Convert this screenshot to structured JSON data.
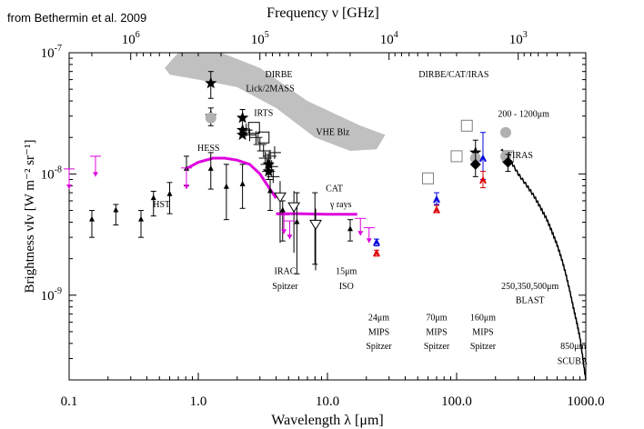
{
  "credit": "from Bethermin et al. 2009",
  "chart_data": {
    "type": "scatter",
    "xscale": "log",
    "yscale": "log",
    "xlim": [
      0.1,
      1000
    ],
    "ylim": [
      2e-10,
      1e-07
    ],
    "xlabel": "Wavelength λ [μm]",
    "ylabel": "Brightness νIν [W m⁻² sr⁻¹]",
    "top_axis_label": "Frequency ν [GHz]",
    "x_ticks": [
      {
        "value": 0.1,
        "label": "0.1"
      },
      {
        "value": 1,
        "label": "1.0"
      },
      {
        "value": 10,
        "label": "10.0"
      },
      {
        "value": 100,
        "label": "100.0"
      },
      {
        "value": 1000,
        "label": "1000.0"
      }
    ],
    "y_ticks": [
      {
        "value": 1e-09,
        "label": "10",
        "exp": "-9"
      },
      {
        "value": 1e-08,
        "label": "10",
        "exp": "-8"
      },
      {
        "value": 1e-07,
        "label": "10",
        "exp": "-7"
      }
    ],
    "top_ticks": [
      {
        "value": 1000000,
        "label": "10",
        "exp": "6"
      },
      {
        "value": 100000,
        "label": "10",
        "exp": "5"
      },
      {
        "value": 10000,
        "label": "10",
        "exp": "4"
      },
      {
        "value": 1000,
        "label": "10",
        "exp": "3"
      }
    ],
    "annotations": [
      {
        "text": "DIRBE",
        "x": 4.2,
        "y": 6.3e-08
      },
      {
        "text": "Lick/2MASS",
        "x": 3.6,
        "y": 4.8e-08
      },
      {
        "text": "IRTS",
        "x": 3.2,
        "y": 3e-08
      },
      {
        "text": "VHE Blz",
        "x": 11,
        "y": 2.1e-08
      },
      {
        "text": "HESS",
        "x": 1.2,
        "y": 1.55e-08
      },
      {
        "text": "DIRBE/CAT/IRAS",
        "x": 95,
        "y": 6.3e-08
      },
      {
        "text": "200 - 1200μm",
        "x": 330,
        "y": 2.95e-08
      },
      {
        "text": "FIRAS",
        "x": 310,
        "y": 1.35e-08
      },
      {
        "text": "HST",
        "x": 0.52,
        "y": 5.3e-09
      },
      {
        "text": "CAT",
        "x": 11.3,
        "y": 7.2e-09
      },
      {
        "text": "γ rays",
        "x": 12.7,
        "y": 5.3e-09
      },
      {
        "text": "IRAC",
        "x": 4.7,
        "y": 1.5e-09
      },
      {
        "text": "Spitzer",
        "x": 4.7,
        "y": 1.12e-09
      },
      {
        "text": "15μm",
        "x": 14,
        "y": 1.5e-09
      },
      {
        "text": "ISO",
        "x": 14,
        "y": 1.12e-09
      },
      {
        "text": "250,350,500μm",
        "x": 370,
        "y": 1.12e-09
      },
      {
        "text": "BLAST",
        "x": 370,
        "y": 8.6e-10
      },
      {
        "text": "24μm",
        "x": 25,
        "y": 6.2e-10
      },
      {
        "text": "MIPS",
        "x": 25,
        "y": 4.7e-10
      },
      {
        "text": "Spitzer",
        "x": 25,
        "y": 3.6e-10
      },
      {
        "text": "70μm",
        "x": 70,
        "y": 6.2e-10
      },
      {
        "text": "MIPS",
        "x": 70,
        "y": 4.7e-10
      },
      {
        "text": "Spitzer",
        "x": 70,
        "y": 3.6e-10
      },
      {
        "text": "160μm",
        "x": 160,
        "y": 6.2e-10
      },
      {
        "text": "MIPS",
        "x": 160,
        "y": 4.7e-10
      },
      {
        "text": "Spitzer",
        "x": 160,
        "y": 3.6e-10
      },
      {
        "text": "850μm",
        "x": 800,
        "y": 3.6e-10
      },
      {
        "text": "SCUBA",
        "x": 790,
        "y": 2.7e-10
      }
    ],
    "series": [
      {
        "color": "#000000",
        "marker": "triangle-up",
        "points": [
          {
            "x": 0.15,
            "y": 4.2e-09,
            "lo": 3e-09,
            "hi": 5e-09
          },
          {
            "x": 0.23,
            "y": 5e-09,
            "lo": 3.8e-09,
            "hi": 5.6e-09
          },
          {
            "x": 0.36,
            "y": 4.2e-09,
            "lo": 3e-09,
            "hi": 5e-09
          },
          {
            "x": 0.45,
            "y": 6.3e-09,
            "lo": 4.5e-09,
            "hi": 7.2e-09
          },
          {
            "x": 0.6,
            "y": 6.8e-09,
            "lo": 4.7e-09,
            "hi": 8.5e-09
          },
          {
            "x": 0.81,
            "y": 1.1e-08,
            "lo": 8e-09,
            "hi": 1.4e-08
          },
          {
            "x": 1.25,
            "y": 1.1e-08,
            "lo": 7.5e-09,
            "hi": 1.5e-08
          },
          {
            "x": 1.65,
            "y": 7.8e-09,
            "lo": 4.2e-09,
            "hi": 1.2e-08
          },
          {
            "x": 2.2,
            "y": 8.2e-09,
            "lo": 5.2e-09,
            "hi": 1.2e-08
          },
          {
            "x": 3.6,
            "y": 7.2e-09,
            "lo": 5e-09,
            "hi": 9e-09
          },
          {
            "x": 4.5,
            "y": 5e-09,
            "lo": 2.8e-09,
            "hi": 6e-09
          },
          {
            "x": 5.8,
            "y": 4e-09,
            "lo": 1.5e-09,
            "hi": 7e-09
          },
          {
            "x": 8.0,
            "y": 4e-09,
            "lo": 1.8e-09,
            "hi": 7e-09
          },
          {
            "x": 15,
            "y": 3.5e-09,
            "lo": 2.8e-09,
            "hi": 4.2e-09
          }
        ]
      },
      {
        "color": "#000000",
        "marker": "plus",
        "points": [
          {
            "x": 2.35,
            "y": 2.3e-08
          },
          {
            "x": 2.5,
            "y": 2.1e-08
          },
          {
            "x": 2.8,
            "y": 2e-08
          },
          {
            "x": 3.0,
            "y": 1.75e-08
          },
          {
            "x": 3.2,
            "y": 1.55e-08
          },
          {
            "x": 3.3,
            "y": 1.35e-08
          },
          {
            "x": 3.4,
            "y": 1.2e-08
          },
          {
            "x": 3.5,
            "y": 1.05e-08
          },
          {
            "x": 3.6,
            "y": 1.4e-08
          },
          {
            "x": 3.7,
            "y": 1.15e-08
          },
          {
            "x": 3.8,
            "y": 9.5e-09
          },
          {
            "x": 3.9,
            "y": 1.5e-08
          }
        ]
      },
      {
        "color": "#000000",
        "marker": "star",
        "points": [
          {
            "x": 1.25,
            "y": 5.6e-08,
            "lo": 4.2e-08,
            "hi": 7e-08
          },
          {
            "x": 1.25,
            "y": 3e-08,
            "lo": 2.5e-08,
            "hi": 3.5e-08
          },
          {
            "x": 2.2,
            "y": 2.9e-08,
            "lo": 2.2e-08,
            "hi": 3.4e-08
          },
          {
            "x": 2.2,
            "y": 2.3e-08
          },
          {
            "x": 2.2,
            "y": 2.1e-08
          },
          {
            "x": 3.5,
            "y": 1.2e-08,
            "lo": 9e-09,
            "hi": 1.45e-08
          },
          {
            "x": 3.5,
            "y": 1.05e-08
          },
          {
            "x": 140,
            "y": 1.5e-08,
            "lo": 1.3e-08,
            "hi": 1.9e-08
          }
        ]
      },
      {
        "color": "#000000",
        "marker": "triangle-down-open",
        "points": [
          {
            "x": 4.3,
            "y": 6.4e-09
          },
          {
            "x": 5.5,
            "y": 5.3e-09
          },
          {
            "x": 8.1,
            "y": 3.8e-09
          }
        ]
      },
      {
        "color": "#000000",
        "marker": "square-open",
        "points": [
          {
            "x": 2.7,
            "y": 2.4e-08
          },
          {
            "x": 3.2,
            "y": 2e-08
          },
          {
            "x": 60,
            "y": 9.2e-09
          },
          {
            "x": 100,
            "y": 1.4e-08
          },
          {
            "x": 120,
            "y": 2.5e-08
          },
          {
            "x": 250,
            "y": 1.4e-08
          }
        ]
      },
      {
        "color": "#b0b0b0",
        "marker": "circle",
        "points": [
          {
            "x": 1.25,
            "y": 2.9e-08
          },
          {
            "x": 140,
            "y": 1.35e-08
          },
          {
            "x": 240,
            "y": 1.4e-08
          },
          {
            "x": 240,
            "y": 2.2e-08
          }
        ]
      },
      {
        "color": "#000000",
        "marker": "diamond",
        "points": [
          {
            "x": 140,
            "y": 1.2e-08,
            "lo": 9.5e-09,
            "hi": 1.5e-08
          },
          {
            "x": 250,
            "y": 1.25e-08,
            "lo": 1.05e-08,
            "hi": 1.45e-08
          }
        ]
      },
      {
        "color": "#0000dd",
        "marker": "caret",
        "points": [
          {
            "x": 24,
            "y": 2.7e-09,
            "lo": 2.55e-09,
            "hi": 2.9e-09
          },
          {
            "x": 70,
            "y": 6.1e-09,
            "lo": 5.6e-09,
            "hi": 7e-09
          },
          {
            "x": 160,
            "y": 1.33e-08,
            "lo": 9e-09,
            "hi": 2.2e-08
          }
        ]
      },
      {
        "color": "#dd0000",
        "marker": "caret",
        "points": [
          {
            "x": 24,
            "y": 2.2e-09,
            "lo": 2.1e-09,
            "hi": 2.35e-09
          },
          {
            "x": 70,
            "y": 5e-09,
            "lo": 4.8e-09,
            "hi": 5.5e-09
          },
          {
            "x": 160,
            "y": 8.8e-09,
            "lo": 7.7e-09,
            "hi": 1.05e-08
          }
        ]
      },
      {
        "color": "#dd00dd",
        "marker": "upper-limit",
        "points": [
          {
            "x": 0.1,
            "y": 1.1e-08,
            "to": 7.5e-09
          },
          {
            "x": 0.16,
            "y": 1.4e-08,
            "to": 9.5e-09
          },
          {
            "x": 0.81,
            "y": 1.12e-08,
            "to": 7.5e-09
          },
          {
            "x": 4.6,
            "y": 4.6e-09,
            "to": 3.2e-09
          },
          {
            "x": 5.1,
            "y": 4.1e-09,
            "to": 2.9e-09
          },
          {
            "x": 18,
            "y": 4.3e-09,
            "to": 3.1e-09
          },
          {
            "x": 21,
            "y": 3.6e-09,
            "to": 2.7e-09
          }
        ]
      }
    ],
    "curves": [
      {
        "name": "HESS",
        "color": "#dd00dd",
        "points": [
          [
            0.8,
            1.1e-08
          ],
          [
            1.0,
            1.25e-08
          ],
          [
            1.3,
            1.35e-08
          ],
          [
            1.6,
            1.35e-08
          ],
          [
            2.0,
            1.3e-08
          ],
          [
            2.5,
            1.2e-08
          ],
          [
            3.0,
            1e-08
          ],
          [
            3.5,
            7.8e-09
          ],
          [
            4.0,
            6.3e-09
          ]
        ]
      },
      {
        "name": "CAT",
        "color": "#dd00dd",
        "points": [
          [
            4.0,
            4.7e-09
          ],
          [
            6.0,
            4.7e-09
          ],
          [
            10.0,
            4.65e-09
          ],
          [
            15.0,
            4.65e-09
          ],
          [
            17.0,
            4.65e-09
          ]
        ]
      },
      {
        "name": "FIRAS",
        "color": "#000000",
        "jagged": true,
        "points": [
          [
            220,
            1.6e-08
          ],
          [
            260,
            1.3e-08
          ],
          [
            300,
            1e-08
          ],
          [
            350,
            8e-09
          ],
          [
            400,
            6.5e-09
          ],
          [
            450,
            5.2e-09
          ],
          [
            500,
            4.2e-09
          ],
          [
            550,
            3.3e-09
          ],
          [
            600,
            2.6e-09
          ],
          [
            650,
            2e-09
          ],
          [
            700,
            1.5e-09
          ],
          [
            750,
            1.1e-09
          ],
          [
            800,
            8e-10
          ],
          [
            850,
            6e-10
          ],
          [
            900,
            4.5e-10
          ],
          [
            950,
            3e-10
          ],
          [
            1000,
            2e-10
          ]
        ]
      }
    ],
    "bands": [
      {
        "name": "DIRBE",
        "color": "#c0c0c0",
        "points": [
          [
            0.55,
            7.5e-08
          ],
          [
            0.7,
            1e-07
          ],
          [
            1.5,
            1e-07
          ],
          [
            3.0,
            7.5e-08
          ],
          [
            7.0,
            4e-08
          ],
          [
            18,
            2.5e-08
          ],
          [
            28,
            2.1e-08
          ],
          [
            24,
            1.6e-08
          ],
          [
            15,
            1.55e-08
          ],
          [
            8,
            2e-08
          ],
          [
            4,
            3.5e-08
          ],
          [
            2,
            5.2e-08
          ],
          [
            1.0,
            6e-08
          ],
          [
            0.6,
            6.6e-08
          ]
        ]
      }
    ]
  }
}
